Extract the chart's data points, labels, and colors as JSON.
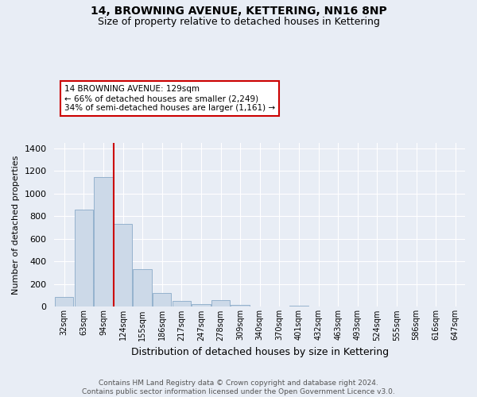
{
  "title": "14, BROWNING AVENUE, KETTERING, NN16 8NP",
  "subtitle": "Size of property relative to detached houses in Kettering",
  "xlabel": "Distribution of detached houses by size in Kettering",
  "ylabel": "Number of detached properties",
  "bin_labels": [
    "32sqm",
    "63sqm",
    "94sqm",
    "124sqm",
    "155sqm",
    "186sqm",
    "217sqm",
    "247sqm",
    "278sqm",
    "309sqm",
    "340sqm",
    "370sqm",
    "401sqm",
    "432sqm",
    "463sqm",
    "493sqm",
    "524sqm",
    "555sqm",
    "586sqm",
    "616sqm",
    "647sqm"
  ],
  "counts": [
    90,
    860,
    1150,
    730,
    330,
    125,
    50,
    25,
    60,
    20,
    0,
    0,
    10,
    0,
    0,
    0,
    0,
    0,
    0,
    0,
    0
  ],
  "bar_color": "#ccd9e8",
  "bar_edge_color": "#8aaac8",
  "vline_color": "#cc0000",
  "vline_index": 3,
  "annotation_text": "14 BROWNING AVENUE: 129sqm\n← 66% of detached houses are smaller (2,249)\n34% of semi-detached houses are larger (1,161) →",
  "annotation_box_edgecolor": "#cc0000",
  "ylim": [
    0,
    1450
  ],
  "background_color": "#e8edf5",
  "grid_color": "#ffffff",
  "footer": "Contains HM Land Registry data © Crown copyright and database right 2024.\nContains public sector information licensed under the Open Government Licence v3.0.",
  "title_fontsize": 10,
  "subtitle_fontsize": 9,
  "tick_label_size": 7,
  "ylabel_fontsize": 8,
  "xlabel_fontsize": 9,
  "ytick_label_size": 8
}
